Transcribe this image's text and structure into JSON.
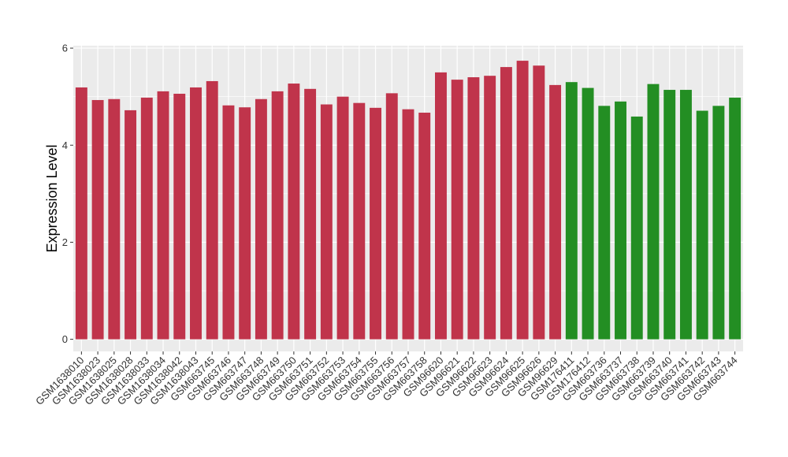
{
  "chart_data": {
    "type": "bar",
    "title": "",
    "xlabel": "",
    "ylabel": "Expression Level",
    "ylim": [
      -0.25,
      6.05
    ],
    "yticks": [
      0,
      2,
      4,
      6
    ],
    "grid": true,
    "colors": {
      "red": "#c0344b",
      "green": "#238e23",
      "panel": "#ebebeb",
      "gridline": "#ffffff"
    },
    "categories": [
      "GSM1638010",
      "GSM1638023",
      "GSM1638025",
      "GSM1638028",
      "GSM1638033",
      "GSM1638034",
      "GSM1638042",
      "GSM1638043",
      "GSM663745",
      "GSM663746",
      "GSM663747",
      "GSM663748",
      "GSM663749",
      "GSM663750",
      "GSM663751",
      "GSM663752",
      "GSM663753",
      "GSM663754",
      "GSM663755",
      "GSM663756",
      "GSM663757",
      "GSM663758",
      "GSM96620",
      "GSM96621",
      "GSM96622",
      "GSM96623",
      "GSM96624",
      "GSM96625",
      "GSM96626",
      "GSM96629",
      "GSM176411",
      "GSM176412",
      "GSM663736",
      "GSM663737",
      "GSM663738",
      "GSM663739",
      "GSM663740",
      "GSM663741",
      "GSM663742",
      "GSM663743",
      "GSM663744"
    ],
    "values": [
      5.19,
      4.93,
      4.95,
      4.72,
      4.98,
      5.11,
      5.06,
      5.19,
      5.32,
      4.82,
      4.78,
      4.95,
      5.11,
      5.27,
      5.16,
      4.84,
      5.0,
      4.87,
      4.77,
      5.07,
      4.74,
      4.67,
      5.5,
      5.35,
      5.4,
      5.43,
      5.61,
      5.74,
      5.64,
      5.24,
      5.3,
      5.18,
      4.81,
      4.9,
      4.59,
      5.26,
      5.14,
      5.14,
      4.71,
      4.81,
      4.98
    ],
    "bar_colors": [
      "red",
      "red",
      "red",
      "red",
      "red",
      "red",
      "red",
      "red",
      "red",
      "red",
      "red",
      "red",
      "red",
      "red",
      "red",
      "red",
      "red",
      "red",
      "red",
      "red",
      "red",
      "red",
      "red",
      "red",
      "red",
      "red",
      "red",
      "red",
      "red",
      "red",
      "green",
      "green",
      "green",
      "green",
      "green",
      "green",
      "green",
      "green",
      "green",
      "green",
      "green"
    ]
  }
}
